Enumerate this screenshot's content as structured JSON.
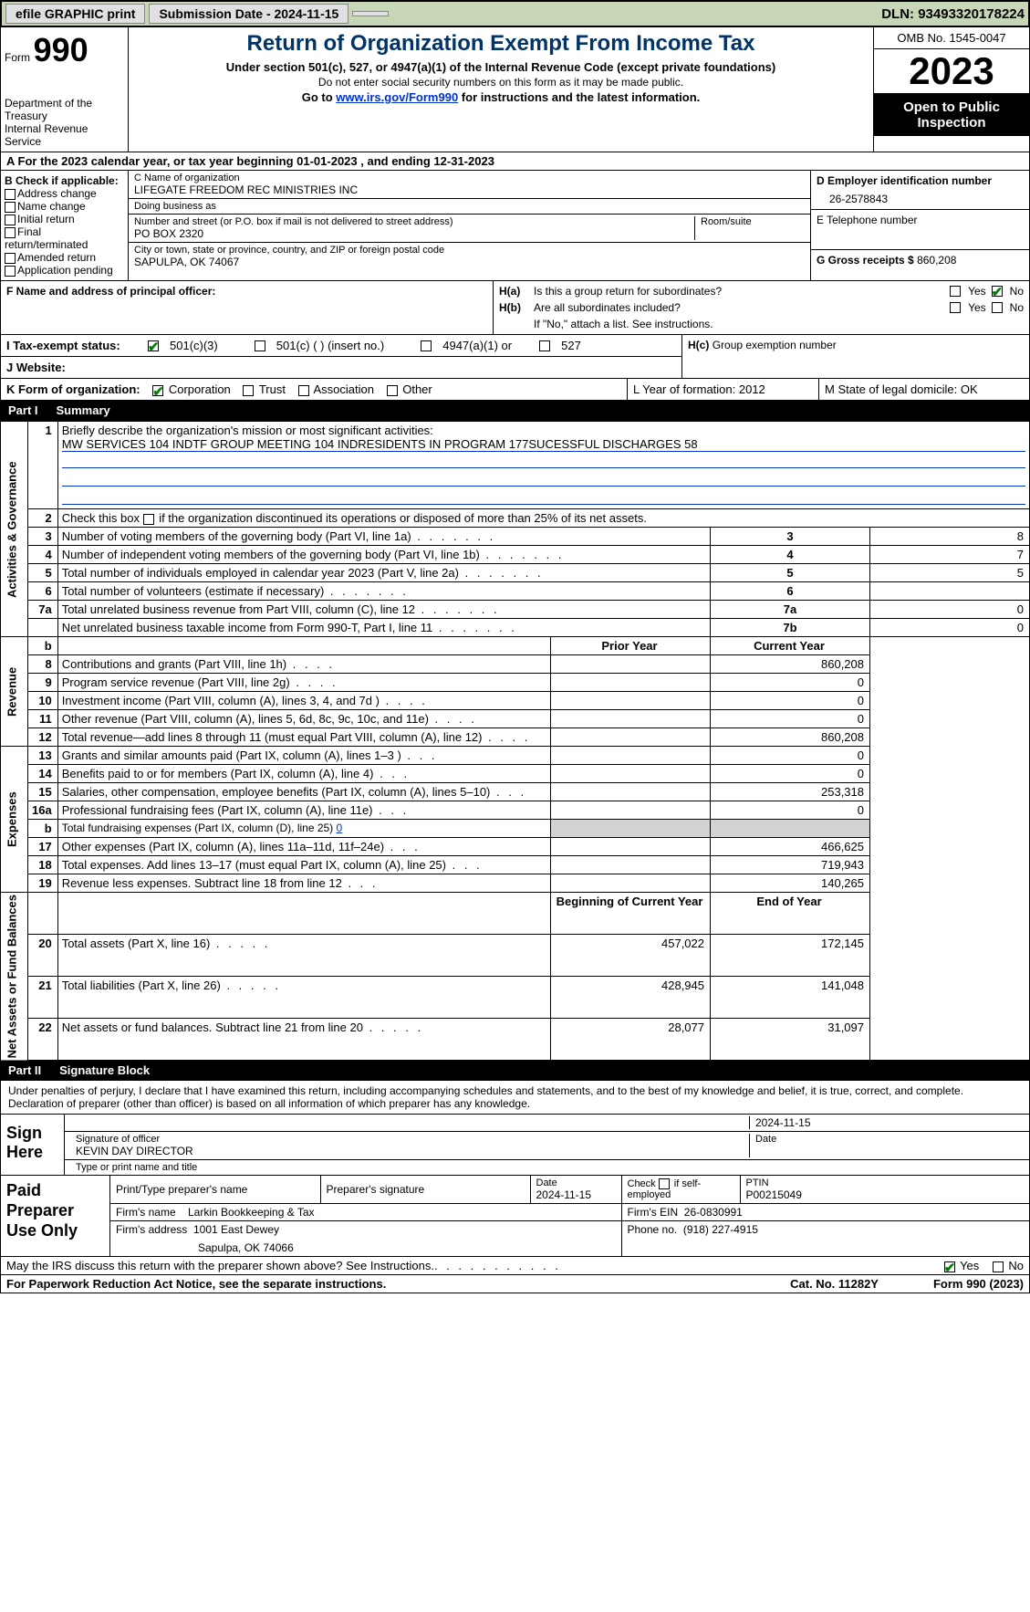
{
  "topbar": {
    "efile": "efile GRAPHIC print",
    "submission": "Submission Date - 2024-11-15",
    "dln": "DLN: 93493320178224"
  },
  "header": {
    "form_word": "Form",
    "form_num": "990",
    "dept": "Department of the Treasury\nInternal Revenue Service",
    "title": "Return of Organization Exempt From Income Tax",
    "sub1": "Under section 501(c), 527, or 4947(a)(1) of the Internal Revenue Code (except private foundations)",
    "sub2": "Do not enter social security numbers on this form as it may be made public.",
    "sub3_pre": "Go to ",
    "sub3_link": "www.irs.gov/Form990",
    "sub3_post": " for instructions and the latest information.",
    "omb": "OMB No. 1545-0047",
    "year": "2023",
    "open": "Open to Public Inspection"
  },
  "taxyear": {
    "a_pre": "A For the 2023 calendar year, or tax year beginning ",
    "begin": "01-01-2023",
    "mid": " , and ending ",
    "end": "12-31-2023"
  },
  "colB": {
    "label": "B Check if applicable:",
    "opts": [
      "Address change",
      "Name change",
      "Initial return",
      "Final return/terminated",
      "Amended return",
      "Application pending"
    ]
  },
  "colC": {
    "name_lbl": "C Name of organization",
    "name": "LIFEGATE FREEDOM REC MINISTRIES INC",
    "dba_lbl": "Doing business as",
    "dba": "",
    "street_lbl": "Number and street (or P.O. box if mail is not delivered to street address)",
    "room_lbl": "Room/suite",
    "street": "PO BOX 2320",
    "city_lbl": "City or town, state or province, country, and ZIP or foreign postal code",
    "city": "SAPULPA, OK   74067"
  },
  "colD": {
    "ein_lbl": "D Employer identification number",
    "ein": "26-2578843",
    "tel_lbl": "E Telephone number",
    "tel": "",
    "gross_lbl": "G Gross receipts $ ",
    "gross": "860,208"
  },
  "rowF": {
    "label": "F  Name and address of principal officer:",
    "ha_label": "H(a)",
    "ha_text": "Is this a group return for subordinates?",
    "ha_no_checked": true,
    "hb_label": "H(b)",
    "hb_text": "Are all subordinates included?",
    "hb_note": "If \"No,\" attach a list. See instructions.",
    "hc_label": "H(c)",
    "hc_text": "Group exemption number",
    "yes": "Yes",
    "no": "No"
  },
  "rowI": {
    "label": "I  Tax-exempt status:",
    "o1": "501(c)(3)",
    "o2": "501(c) (   ) (insert no.)",
    "o3": "4947(a)(1) or",
    "o4": "527",
    "o1_checked": true
  },
  "rowJ": {
    "label": "J  Website:",
    "val": ""
  },
  "rowK": {
    "label": "K Form of organization:",
    "opts": [
      "Corporation",
      "Trust",
      "Association",
      "Other"
    ],
    "corp_checked": true,
    "l": "L Year of formation: 2012",
    "m": "M State of legal domicile: OK"
  },
  "part1": {
    "num": "Part I",
    "title": "Summary"
  },
  "summary": {
    "sections": {
      "gov": "Activities & Governance",
      "rev": "Revenue",
      "exp": "Expenses",
      "net": "Net Assets or Fund Balances"
    },
    "line1_lbl": "Briefly describe the organization's mission or most significant activities:",
    "line1_val": "MW SERVICES 104 INDTF GROUP MEETING 104 INDRESIDENTS IN PROGRAM 177SUCESSFUL DISCHARGES 58",
    "line2": "Check this box      if the organization discontinued its operations or disposed of more than 25% of its net assets.",
    "lines": [
      {
        "n": "3",
        "d": "Number of voting members of the governing body (Part VI, line 1a)",
        "c": "3",
        "v": "8"
      },
      {
        "n": "4",
        "d": "Number of independent voting members of the governing body (Part VI, line 1b)",
        "c": "4",
        "v": "7"
      },
      {
        "n": "5",
        "d": "Total number of individuals employed in calendar year 2023 (Part V, line 2a)",
        "c": "5",
        "v": "5"
      },
      {
        "n": "6",
        "d": "Total number of volunteers (estimate if necessary)",
        "c": "6",
        "v": ""
      },
      {
        "n": "7a",
        "d": "Total unrelated business revenue from Part VIII, column (C), line 12",
        "c": "7a",
        "v": "0"
      },
      {
        "n": "",
        "d": "Net unrelated business taxable income from Form 990-T, Part I, line 11",
        "c": "7b",
        "v": "0"
      }
    ],
    "b_row": "b",
    "prior": "Prior Year",
    "current": "Current Year",
    "rev_lines": [
      {
        "n": "8",
        "d": "Contributions and grants (Part VIII, line 1h)",
        "p": "",
        "c": "860,208"
      },
      {
        "n": "9",
        "d": "Program service revenue (Part VIII, line 2g)",
        "p": "",
        "c": "0"
      },
      {
        "n": "10",
        "d": "Investment income (Part VIII, column (A), lines 3, 4, and 7d )",
        "p": "",
        "c": "0"
      },
      {
        "n": "11",
        "d": "Other revenue (Part VIII, column (A), lines 5, 6d, 8c, 9c, 10c, and 11e)",
        "p": "",
        "c": "0"
      },
      {
        "n": "12",
        "d": "Total revenue—add lines 8 through 11 (must equal Part VIII, column (A), line 12)",
        "p": "",
        "c": "860,208"
      }
    ],
    "exp_lines": [
      {
        "n": "13",
        "d": "Grants and similar amounts paid (Part IX, column (A), lines 1–3 )",
        "p": "",
        "c": "0"
      },
      {
        "n": "14",
        "d": "Benefits paid to or for members (Part IX, column (A), line 4)",
        "p": "",
        "c": "0"
      },
      {
        "n": "15",
        "d": "Salaries, other compensation, employee benefits (Part IX, column (A), lines 5–10)",
        "p": "",
        "c": "253,318"
      },
      {
        "n": "16a",
        "d": "Professional fundraising fees (Part IX, column (A), line 11e)",
        "p": "",
        "c": "0"
      },
      {
        "n": "b",
        "d": "Total fundraising expenses (Part IX, column (D), line 25) 0",
        "p": "SHADE",
        "c": "SHADE"
      },
      {
        "n": "17",
        "d": "Other expenses (Part IX, column (A), lines 11a–11d, 11f–24e)",
        "p": "",
        "c": "466,625"
      },
      {
        "n": "18",
        "d": "Total expenses. Add lines 13–17 (must equal Part IX, column (A), line 25)",
        "p": "",
        "c": "719,943"
      },
      {
        "n": "19",
        "d": "Revenue less expenses. Subtract line 18 from line 12",
        "p": "",
        "c": "140,265"
      }
    ],
    "begin": "Beginning of Current Year",
    "end": "End of Year",
    "net_lines": [
      {
        "n": "20",
        "d": "Total assets (Part X, line 16)",
        "p": "457,022",
        "c": "172,145"
      },
      {
        "n": "21",
        "d": "Total liabilities (Part X, line 26)",
        "p": "428,945",
        "c": "141,048"
      },
      {
        "n": "22",
        "d": "Net assets or fund balances. Subtract line 21 from line 20",
        "p": "28,077",
        "c": "31,097"
      }
    ]
  },
  "part2": {
    "num": "Part II",
    "title": "Signature Block"
  },
  "sig": {
    "text": "Under penalties of perjury, I declare that I have examined this return, including accompanying schedules and statements, and to the best of my knowledge and belief, it is true, correct, and complete. Declaration of preparer (other than officer) is based on all information of which preparer has any knowledge.",
    "sign_here": "Sign Here",
    "sig_officer_lbl": "Signature of officer",
    "sig_officer": "KEVIN DAY DIRECTOR",
    "sig_name_lbl": "Type or print name and title",
    "date_lbl": "Date",
    "date": "2024-11-15",
    "paid": "Paid Preparer Use Only",
    "prep_name_lbl": "Print/Type preparer's name",
    "prep_sig_lbl": "Preparer's signature",
    "prep_date_lbl": "Date",
    "prep_date": "2024-11-15",
    "self_emp": "Check       if self-employed",
    "ptin_lbl": "PTIN",
    "ptin": "P00215049",
    "firm_name_lbl": "Firm's name",
    "firm_name": "Larkin Bookkeeping & Tax",
    "firm_ein_lbl": "Firm's EIN",
    "firm_ein": "26-0830991",
    "firm_addr_lbl": "Firm's address",
    "firm_addr": "1001 East Dewey",
    "firm_city": "Sapulpa, OK  74066",
    "phone_lbl": "Phone no.",
    "phone": "(918) 227-4915"
  },
  "irs": {
    "q": "May the IRS discuss this return with the preparer shown above? See Instructions.",
    "yes_checked": true
  },
  "footer": {
    "left": "For Paperwork Reduction Act Notice, see the separate instructions.",
    "mid": "Cat. No. 11282Y",
    "right_pre": "Form ",
    "right_b": "990",
    "right_post": " (2023)"
  }
}
